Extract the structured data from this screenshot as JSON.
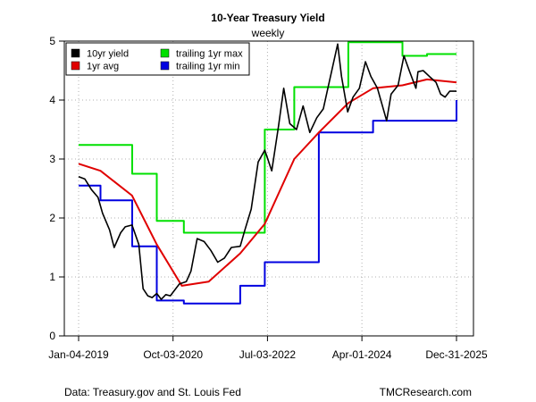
{
  "chart_data": {
    "type": "line",
    "title": "10-Year Treasury Yield",
    "subtitle": "weekly",
    "xlabel": "",
    "ylabel": "",
    "ylim": [
      0,
      5
    ],
    "y_ticks": [
      0,
      1,
      2,
      3,
      4,
      5
    ],
    "x_tick_labels": [
      "Jan-04-2019",
      "Oct-03-2020",
      "Jul-03-2022",
      "Apr-01-2024",
      "Dec-31-2025"
    ],
    "grid": true,
    "legend_position": "top-left",
    "colors": {
      "10yr yield": "#000000",
      "1yr avg": "#e00000",
      "trailing 1yr max": "#00e000",
      "trailing 1yr min": "#0000e0"
    },
    "series": [
      {
        "name": "10yr yield",
        "x": [
          "2019-01-04",
          "2019-02-15",
          "2019-04-01",
          "2019-05-15",
          "2019-06-15",
          "2019-08-01",
          "2019-09-01",
          "2019-10-15",
          "2019-11-15",
          "2019-12-31",
          "2020-02-15",
          "2020-03-15",
          "2020-04-15",
          "2020-05-15",
          "2020-06-15",
          "2020-07-15",
          "2020-08-15",
          "2020-09-15",
          "2020-10-15",
          "2020-11-15",
          "2020-12-31",
          "2021-02-01",
          "2021-03-15",
          "2021-05-01",
          "2021-06-15",
          "2021-08-01",
          "2021-09-15",
          "2021-11-01",
          "2021-12-31",
          "2022-02-01",
          "2022-03-15",
          "2022-05-01",
          "2022-06-15",
          "2022-08-01",
          "2022-09-15",
          "2022-10-21",
          "2022-12-01",
          "2023-01-15",
          "2023-03-01",
          "2023-04-15",
          "2023-06-01",
          "2023-07-15",
          "2023-08-15",
          "2023-10-20",
          "2023-11-15",
          "2023-12-27",
          "2024-02-01",
          "2024-03-15",
          "2024-04-25",
          "2024-06-01",
          "2024-07-15",
          "2024-09-15",
          "2024-10-15",
          "2024-12-01",
          "2025-01-10",
          "2025-02-15",
          "2025-04-01",
          "2025-04-15",
          "2025-05-20",
          "2025-07-01",
          "2025-08-15",
          "2025-09-15",
          "2025-10-15",
          "2025-11-15",
          "2025-12-31"
        ],
        "values": [
          2.7,
          2.66,
          2.48,
          2.35,
          2.08,
          1.8,
          1.5,
          1.75,
          1.85,
          1.88,
          1.55,
          0.8,
          0.68,
          0.65,
          0.72,
          0.62,
          0.7,
          0.68,
          0.78,
          0.88,
          0.92,
          1.1,
          1.65,
          1.6,
          1.45,
          1.25,
          1.32,
          1.5,
          1.52,
          1.8,
          2.15,
          2.95,
          3.15,
          2.8,
          3.55,
          4.2,
          3.6,
          3.5,
          3.9,
          3.45,
          3.7,
          3.85,
          4.2,
          4.95,
          4.4,
          3.8,
          4.05,
          4.2,
          4.65,
          4.4,
          4.2,
          3.65,
          4.1,
          4.25,
          4.75,
          4.5,
          4.2,
          4.48,
          4.5,
          4.4,
          4.3,
          4.1,
          4.05,
          4.15,
          4.15
        ]
      },
      {
        "name": "1yr avg",
        "x": [
          "2019-01-04",
          "2019-06-01",
          "2019-12-31",
          "2020-06-15",
          "2020-12-01",
          "2021-06-01",
          "2021-12-31",
          "2022-06-15",
          "2022-12-31",
          "2023-06-15",
          "2023-12-31",
          "2024-06-15",
          "2024-12-31",
          "2025-06-15",
          "2025-12-31"
        ],
        "values": [
          2.92,
          2.8,
          2.38,
          1.55,
          0.85,
          0.92,
          1.4,
          1.9,
          3.0,
          3.45,
          3.95,
          4.2,
          4.25,
          4.35,
          4.3
        ]
      },
      {
        "name": "trailing 1yr max",
        "x": [
          "2019-01-04",
          "2019-06-01",
          "2020-01-01",
          "2020-06-15",
          "2020-12-15",
          "2021-06-15",
          "2021-12-31",
          "2022-06-15",
          "2022-12-31",
          "2023-06-15",
          "2023-12-31",
          "2024-06-15",
          "2024-12-31",
          "2025-06-15",
          "2025-12-31"
        ],
        "values": [
          3.24,
          3.24,
          2.75,
          1.95,
          1.75,
          1.75,
          1.75,
          3.5,
          4.22,
          4.22,
          4.98,
          4.98,
          4.75,
          4.78,
          4.78
        ]
      },
      {
        "name": "trailing 1yr min",
        "x": [
          "2019-01-04",
          "2019-06-01",
          "2020-01-01",
          "2020-06-15",
          "2020-12-15",
          "2021-06-15",
          "2021-12-31",
          "2022-06-15",
          "2022-12-31",
          "2023-06-15",
          "2023-12-31",
          "2024-06-15",
          "2024-12-31",
          "2025-06-15",
          "2025-12-31"
        ],
        "values": [
          2.55,
          2.3,
          1.52,
          0.6,
          0.55,
          0.55,
          0.85,
          1.25,
          1.25,
          3.45,
          3.45,
          3.65,
          3.65,
          3.65,
          4.0
        ]
      }
    ]
  },
  "footer": {
    "source": "Data: Treasury.gov and St. Louis Fed",
    "credit": "TMCResearch.com"
  }
}
